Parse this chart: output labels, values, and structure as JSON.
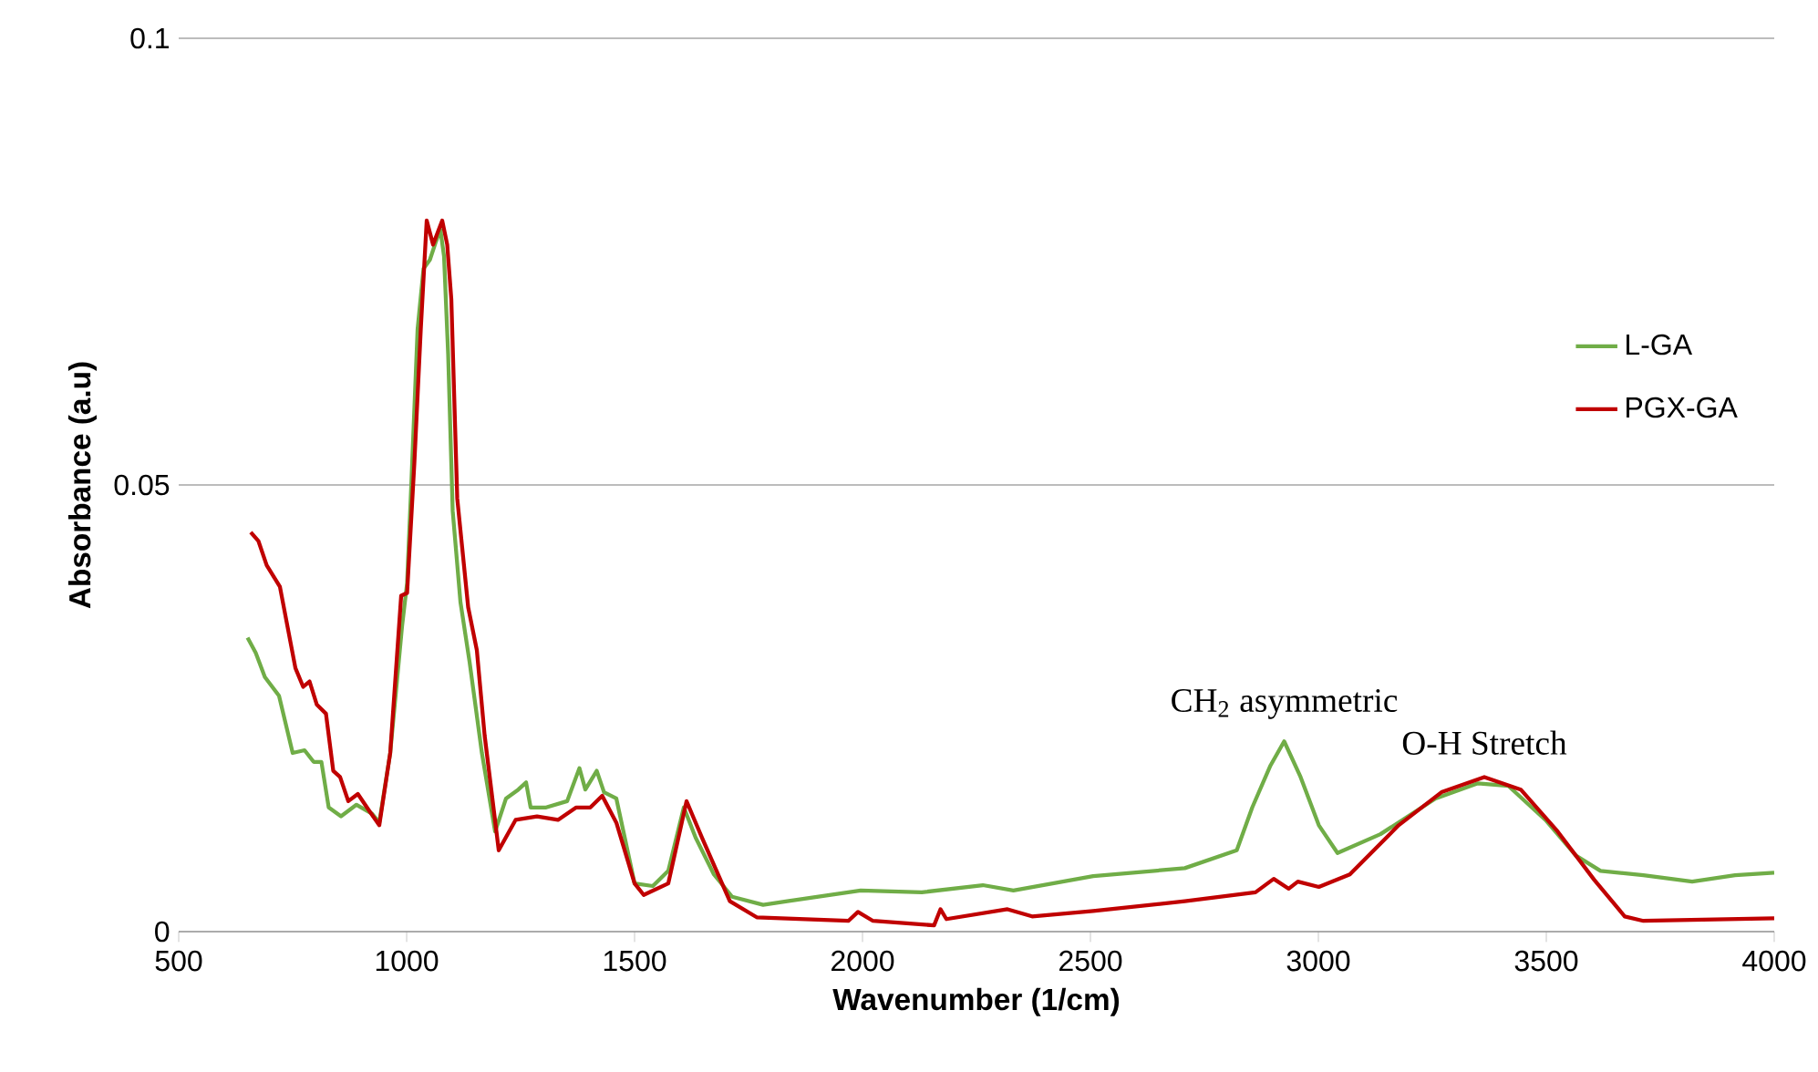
{
  "chart_data": {
    "type": "line",
    "xlabel": "Wavenumber (1/cm)",
    "ylabel": "Absorbance (a.u)",
    "xlim": [
      500,
      4000
    ],
    "xticks": [
      500,
      1000,
      1500,
      2000,
      2500,
      3000,
      3500,
      4000
    ],
    "ylim": [
      0,
      0.1
    ],
    "yticks": [
      0,
      0.05,
      0.1
    ],
    "grid": "y",
    "legend": "right",
    "marker": "none",
    "line_style": "solid",
    "series": [
      {
        "name": "L-GA",
        "color": "#70ad47",
        "x": [
          651,
          669,
          689,
          720,
          750,
          776,
          796,
          813,
          829,
          856,
          890,
          924,
          940,
          964,
          990,
          1001,
          1010,
          1024,
          1037,
          1051,
          1064,
          1074,
          1082,
          1091,
          1101,
          1118,
          1138,
          1165,
          1194,
          1218,
          1245,
          1262,
          1272,
          1306,
          1352,
          1379,
          1392,
          1417,
          1433,
          1460,
          1500,
          1540,
          1574,
          1608,
          1634,
          1674,
          1714,
          1782,
          1835,
          1996,
          2130,
          2264,
          2331,
          2506,
          2707,
          2821,
          2855,
          2895,
          2925,
          2961,
          3001,
          3042,
          3136,
          3257,
          3350,
          3417,
          3498,
          3565,
          3619,
          3713,
          3820,
          3914,
          4000
        ],
        "values": [
          0.0329,
          0.0312,
          0.0285,
          0.0264,
          0.02,
          0.0203,
          0.019,
          0.019,
          0.0139,
          0.0129,
          0.0142,
          0.0132,
          0.0122,
          0.02,
          0.0342,
          0.039,
          0.0498,
          0.0674,
          0.0742,
          0.0752,
          0.0772,
          0.0786,
          0.0756,
          0.0647,
          0.0471,
          0.0369,
          0.0302,
          0.02,
          0.0112,
          0.0149,
          0.0159,
          0.0167,
          0.0139,
          0.0139,
          0.0146,
          0.0183,
          0.0159,
          0.018,
          0.0156,
          0.0149,
          0.0054,
          0.0051,
          0.0068,
          0.0139,
          0.0105,
          0.0064,
          0.0039,
          0.003,
          0.0034,
          0.0046,
          0.0044,
          0.0052,
          0.0046,
          0.0062,
          0.0071,
          0.0091,
          0.0139,
          0.0186,
          0.0213,
          0.0173,
          0.0119,
          0.0088,
          0.0109,
          0.0149,
          0.0166,
          0.0163,
          0.0125,
          0.0085,
          0.0068,
          0.0063,
          0.0056,
          0.0063,
          0.0066
        ]
      },
      {
        "name": "PGX-GA",
        "color": "#c00000",
        "x": [
          658,
          675,
          693,
          722,
          756,
          773,
          787,
          803,
          823,
          839,
          854,
          872,
          893,
          917,
          940,
          964,
          988,
          1001,
          1017,
          1031,
          1044,
          1058,
          1078,
          1089,
          1098,
          1111,
          1135,
          1154,
          1171,
          1202,
          1239,
          1286,
          1332,
          1372,
          1403,
          1429,
          1460,
          1500,
          1520,
          1574,
          1614,
          1648,
          1709,
          1768,
          1969,
          1990,
          2023,
          2157,
          2171,
          2184,
          2318,
          2372,
          2506,
          2707,
          2862,
          2902,
          2935,
          2955,
          3001,
          3069,
          3176,
          3270,
          3364,
          3444,
          3525,
          3605,
          3672,
          3713,
          4000
        ],
        "values": [
          0.0447,
          0.0437,
          0.041,
          0.0386,
          0.0295,
          0.0274,
          0.028,
          0.0254,
          0.0244,
          0.018,
          0.0173,
          0.0146,
          0.0154,
          0.0136,
          0.0119,
          0.02,
          0.0376,
          0.0379,
          0.0525,
          0.0674,
          0.0796,
          0.0769,
          0.0796,
          0.0769,
          0.0708,
          0.0485,
          0.0363,
          0.0315,
          0.022,
          0.0091,
          0.0125,
          0.0129,
          0.0125,
          0.0139,
          0.0139,
          0.0152,
          0.0122,
          0.0054,
          0.0041,
          0.0054,
          0.0146,
          0.0105,
          0.0034,
          0.0016,
          0.0012,
          0.0022,
          0.0012,
          0.0007,
          0.0025,
          0.0014,
          0.0025,
          0.0017,
          0.0023,
          0.0034,
          0.0044,
          0.0059,
          0.0048,
          0.0056,
          0.005,
          0.0064,
          0.0119,
          0.0156,
          0.0173,
          0.0159,
          0.0112,
          0.0058,
          0.0017,
          0.0012,
          0.0015
        ]
      }
    ],
    "annotations": [
      {
        "text": "CH$_{2}$ asymmetric",
        "x": 2925,
        "y": 0.0213
      },
      {
        "text": "O-H Stretch",
        "x": 3364,
        "y": 0.0173
      }
    ]
  }
}
